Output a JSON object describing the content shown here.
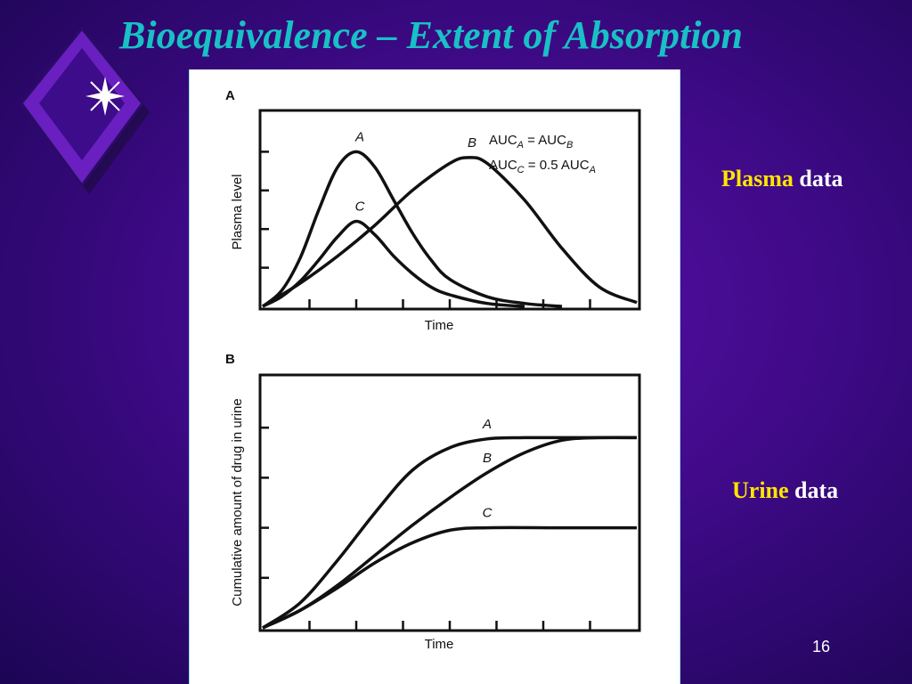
{
  "slide": {
    "title": "Bioequivalence – Extent of Absorption",
    "plasma_label_highlight": "Plasma",
    "plasma_label_rest": " data",
    "urine_label_highlight": "Urine",
    "urine_label_rest": " data",
    "page_number": "16"
  },
  "colors": {
    "title": "#19c0c6",
    "highlight": "#ffe600",
    "background": "#3f0a88"
  },
  "chart_data": [
    {
      "panel": "A",
      "type": "line",
      "xlabel": "Time",
      "ylabel": "Plasma level",
      "annotations": [
        "AUCA = AUCB",
        "AUCC = 0.5 AUCA"
      ],
      "annotation_parts": [
        {
          "base": "AUC",
          "sub1": "A",
          "eq": " = AUC",
          "sub2": "B",
          "tail": ""
        },
        {
          "base": "AUC",
          "sub1": "C",
          "eq": " = 0.5 AUC",
          "sub2": "A",
          "tail": ""
        }
      ],
      "grid": false,
      "xlim": [
        0,
        10
      ],
      "ylim": [
        0,
        1
      ],
      "series": [
        {
          "name": "A",
          "x": [
            0,
            0.5,
            1,
            1.5,
            2,
            2.5,
            3,
            3.5,
            4,
            4.5,
            5,
            6,
            7,
            8
          ],
          "values": [
            0,
            0.08,
            0.25,
            0.5,
            0.72,
            0.8,
            0.72,
            0.55,
            0.38,
            0.24,
            0.14,
            0.05,
            0.015,
            0
          ]
        },
        {
          "name": "B",
          "x": [
            0,
            1,
            2,
            3,
            4,
            5,
            5.5,
            6,
            7,
            8,
            9,
            10
          ],
          "values": [
            0,
            0.12,
            0.26,
            0.42,
            0.6,
            0.74,
            0.77,
            0.74,
            0.55,
            0.3,
            0.1,
            0.02
          ]
        },
        {
          "name": "C",
          "x": [
            0,
            0.5,
            1,
            1.5,
            2,
            2.5,
            3,
            3.5,
            4,
            4.5,
            5,
            6,
            7
          ],
          "values": [
            0,
            0.05,
            0.13,
            0.24,
            0.36,
            0.44,
            0.37,
            0.26,
            0.17,
            0.1,
            0.06,
            0.015,
            0
          ]
        }
      ]
    },
    {
      "panel": "B",
      "type": "line",
      "xlabel": "Time",
      "ylabel": "Cumulative amount of drug in urine",
      "grid": false,
      "xlim": [
        0,
        10
      ],
      "ylim": [
        0,
        1
      ],
      "series": [
        {
          "name": "A",
          "x": [
            0,
            1,
            2,
            3,
            4,
            5,
            6,
            7,
            8,
            10
          ],
          "values": [
            0,
            0.1,
            0.27,
            0.46,
            0.63,
            0.72,
            0.755,
            0.76,
            0.76,
            0.76
          ]
        },
        {
          "name": "B",
          "x": [
            0,
            1,
            2,
            3,
            4,
            5,
            6,
            7,
            8,
            9,
            10
          ],
          "values": [
            0,
            0.07,
            0.17,
            0.29,
            0.41,
            0.52,
            0.62,
            0.7,
            0.75,
            0.76,
            0.76
          ]
        },
        {
          "name": "C",
          "x": [
            0,
            1,
            2,
            3,
            4,
            5,
            6,
            8,
            10
          ],
          "values": [
            0,
            0.07,
            0.16,
            0.26,
            0.34,
            0.39,
            0.4,
            0.4,
            0.4
          ]
        }
      ]
    }
  ]
}
